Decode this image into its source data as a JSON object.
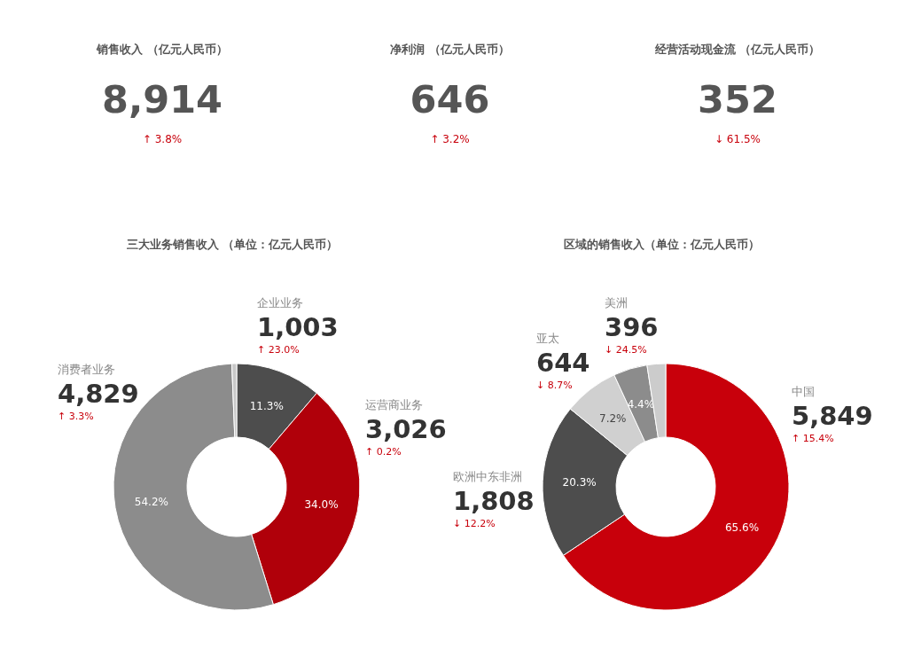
{
  "chart_data": [
    {
      "type": "other",
      "title": "销售收入 （亿元人民币）",
      "values": [
        8914
      ],
      "value_labels": [
        "8,914"
      ],
      "annotations": [
        "↑ 3.8%"
      ]
    },
    {
      "type": "other",
      "title": "净利润 （亿元人民币）",
      "values": [
        646
      ],
      "value_labels": [
        "646"
      ],
      "annotations": [
        "↑ 3.2%"
      ]
    },
    {
      "type": "other",
      "title": "经营活动现金流 （亿元人民币）",
      "values": [
        352
      ],
      "value_labels": [
        "352"
      ],
      "annotations": [
        "↓ 61.5%"
      ]
    },
    {
      "type": "donut",
      "title": "三大业务销售收入 （单位：亿元人民币）",
      "categories": [
        "企业业务",
        "运营商业务",
        "消费者业务",
        null
      ],
      "values": [
        1003,
        3026,
        4829,
        56
      ],
      "colors": [
        "#4d4d4d",
        "#b0000a",
        "#8c8c8c",
        "#c8c8c8"
      ],
      "value_labels": [
        "1,003",
        "3,026",
        "4,829",
        null
      ],
      "annotations": [
        "11.3%",
        "34.0%",
        "54.2%",
        "↑ 23.0%",
        "↑ 0.2%",
        "↑ 3.3%"
      ]
    },
    {
      "type": "donut",
      "title": "区域的销售收入（单位：亿元人民币）",
      "categories": [
        "中国",
        "欧洲中东非洲",
        "亚太",
        "美洲",
        null
      ],
      "values": [
        5849,
        1808,
        644,
        396,
        217
      ],
      "colors": [
        "#c8000b",
        "#4d4d4d",
        "#d0d0d0",
        "#8c8c8c",
        "#cccccc"
      ],
      "value_labels": [
        "5,849",
        "1,808",
        "644",
        "396",
        null
      ],
      "annotations": [
        "65.6%",
        "20.3%",
        "7.2%",
        "4.4%",
        "↑ 15.4%",
        "↓ 12.2%",
        "↓ 8.7%",
        "↓ 24.5%"
      ]
    }
  ]
}
